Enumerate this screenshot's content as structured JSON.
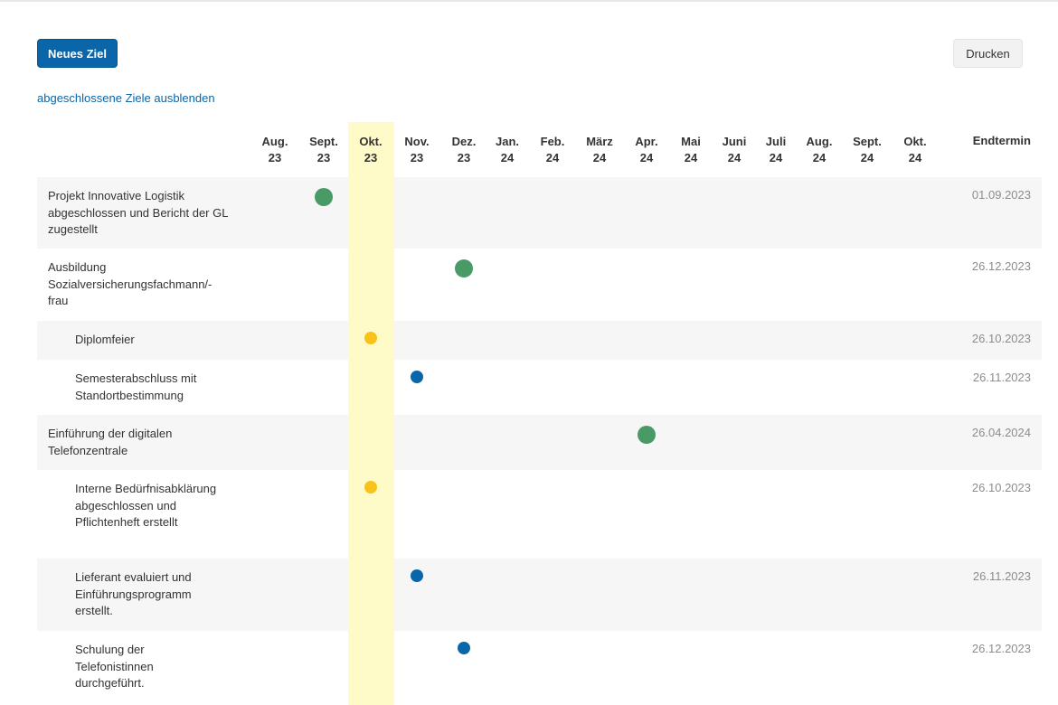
{
  "toolbar": {
    "new_goal_label": "Neues Ziel",
    "print_label": "Drucken",
    "hide_completed_label": "abgeschlossene Ziele ausblenden"
  },
  "timeline": {
    "months": [
      {
        "month": "Aug.",
        "year": "23"
      },
      {
        "month": "Sept.",
        "year": "23"
      },
      {
        "month": "Okt.",
        "year": "23"
      },
      {
        "month": "Nov.",
        "year": "23"
      },
      {
        "month": "Dez.",
        "year": "23"
      },
      {
        "month": "Jan.",
        "year": "24"
      },
      {
        "month": "Feb.",
        "year": "24"
      },
      {
        "month": "März",
        "year": "24"
      },
      {
        "month": "Apr.",
        "year": "24"
      },
      {
        "month": "Mai",
        "year": "24"
      },
      {
        "month": "Juni",
        "year": "24"
      },
      {
        "month": "Juli",
        "year": "24"
      },
      {
        "month": "Aug.",
        "year": "24"
      },
      {
        "month": "Sept.",
        "year": "24"
      },
      {
        "month": "Okt.",
        "year": "24"
      }
    ],
    "current_month_index": 2,
    "end_header": "Endtermin"
  },
  "colors": {
    "goal_done": "#4a9a68",
    "milestone_current": "#f8c21a",
    "milestone_open": "#0a66a8",
    "highlight": "#fffbc8"
  },
  "rows": [
    {
      "label": "Projekt Innovative Logistik abgeschlossen und Bericht der GL zugestellt",
      "level": 0,
      "end": "01.09.2023",
      "month_index": 1,
      "marker": "goal_done"
    },
    {
      "label": "Ausbildung Sozialversicherungsfachmann/-frau",
      "level": 0,
      "end": "26.12.2023",
      "month_index": 4,
      "marker": "goal_done"
    },
    {
      "label": "Diplomfeier",
      "level": 1,
      "end": "26.10.2023",
      "month_index": 2,
      "marker": "milestone_current"
    },
    {
      "label": "Semesterabschluss mit Standortbestimmung",
      "level": 1,
      "end": "26.11.2023",
      "month_index": 3,
      "marker": "milestone_open"
    },
    {
      "label": "Einführung der digitalen Telefonzentrale",
      "level": 0,
      "end": "26.04.2024",
      "month_index": 8,
      "marker": "goal_done"
    },
    {
      "label": "Interne Bedürfnisabklärung abgeschlossen und Pflichtenheft erstellt",
      "level": 1,
      "end": "26.10.2023",
      "month_index": 2,
      "marker": "milestone_current"
    },
    {
      "label": "Lieferant evaluiert und Einführungsprogramm erstellt.",
      "level": 1,
      "end": "26.11.2023",
      "month_index": 3,
      "marker": "milestone_open"
    },
    {
      "label": "Schulung der Telefonistinnen durchgeführt.",
      "level": 1,
      "end": "26.12.2023",
      "month_index": 4,
      "marker": "milestone_open"
    }
  ]
}
